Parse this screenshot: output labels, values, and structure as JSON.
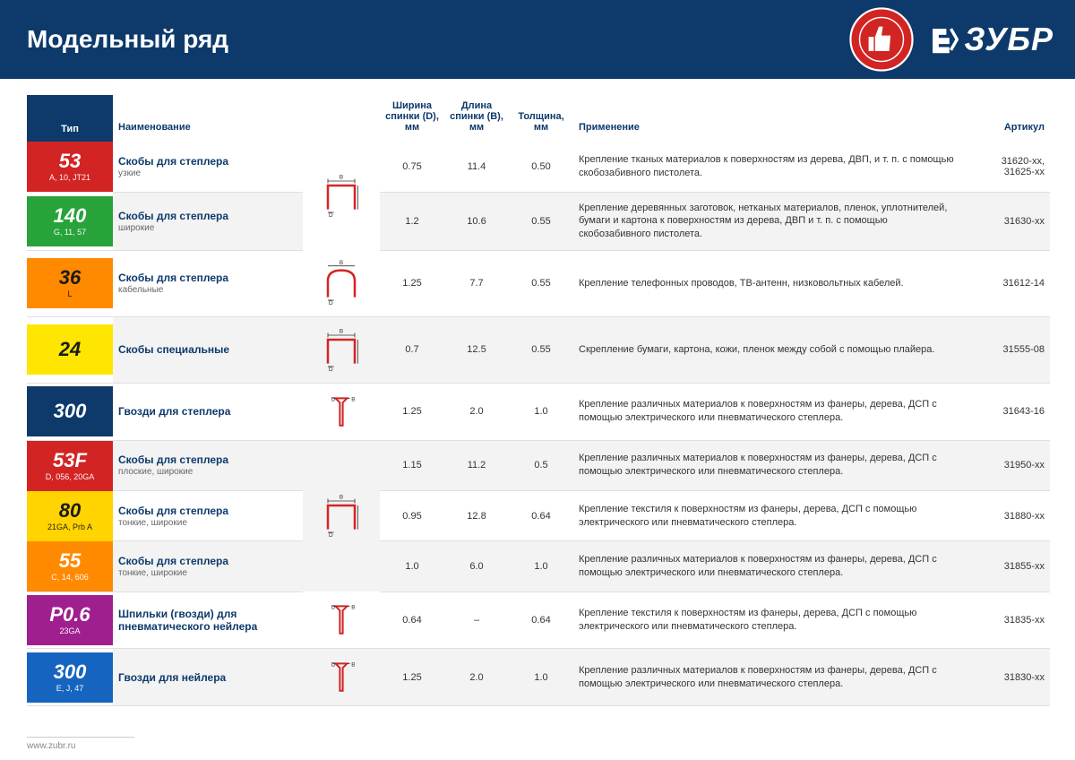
{
  "page": {
    "title": "Модельный ряд",
    "brand": "ЗУБР",
    "footer": "www.zubr.ru",
    "colors": {
      "header_bg": "#0d3a6b",
      "red": "#d32424",
      "green": "#27a33a",
      "yellow": "#ffd400",
      "yellow_dark": "#ffe600",
      "blue": "#0d3a6b",
      "orange": "#ff8a00",
      "purple": "#a01f8f",
      "blue2": "#1565c0",
      "row_alt": "#f3f3f3"
    }
  },
  "table": {
    "type": "table",
    "headers": {
      "tip": "Тип",
      "name": "Наименование",
      "width_d": "Ширина\nспинки (D), мм",
      "length_b": "Длина\nспинки (B), мм",
      "thickness": "Толщина,\nмм",
      "app": "Применение",
      "article": "Артикул"
    },
    "groups": [
      {
        "diagram": "staple",
        "rows": [
          {
            "code": "53",
            "sub": "A, 10, JT21",
            "bg": "#d32424",
            "name": "Скобы для степлера",
            "name_sub": "узкие",
            "d": "0.75",
            "b": "11.4",
            "t": "0.50",
            "app": "Крепление тканых материалов к поверхностям из дерева, ДВП, и т. п. с помощью скобозабивного пистолета.",
            "art": "31620-xx,\n31625-xx"
          },
          {
            "code": "140",
            "sub": "G, 11, 57",
            "bg": "#27a33a",
            "name": "Скобы для степлера",
            "name_sub": "широкие",
            "d": "1.2",
            "b": "10.6",
            "t": "0.55",
            "app": "Крепление деревянных заготовок, нетканых материалов, пленок, уплотнителей, бумаги и картона к поверхностям из дерева, ДВП и т. п. с помощью скобозабивного пистолета.",
            "art": "31630-xx",
            "alt": true
          }
        ]
      },
      {
        "diagram": "staple_round",
        "rows": [
          {
            "code": "36",
            "sub": "L",
            "bg": "#ff8a00",
            "dark_text": true,
            "name": "Скобы для степлера",
            "name_sub": "кабельные",
            "d": "1.25",
            "b": "7.7",
            "t": "0.55",
            "app": "Крепление телефонных проводов, ТВ-антенн, низковольтных кабелей.",
            "art": "31612-14"
          }
        ]
      },
      {
        "diagram": "staple",
        "rows": [
          {
            "code": "24",
            "sub": "",
            "bg": "#ffe600",
            "dark_text": true,
            "name": "Скобы специальные",
            "name_sub": "",
            "d": "0.7",
            "b": "12.5",
            "t": "0.55",
            "app": "Скрепление бумаги, картона, кожи, пленок между собой с помощью плайера.",
            "art": "31555-08",
            "alt": true
          }
        ]
      },
      {
        "diagram": "nail",
        "rows": [
          {
            "code": "300",
            "sub": "",
            "bg": "#0d3a6b",
            "name": "Гвозди для степлера",
            "name_sub": "",
            "d": "1.25",
            "b": "2.0",
            "t": "1.0",
            "app": "Крепление различных материалов к поверхностям из фанеры, дерева, ДСП с помощью электрического или пневматического степлера.",
            "art": "31643-16"
          }
        ]
      },
      {
        "diagram": "staple",
        "rows": [
          {
            "code": "53F",
            "sub": "D, 056, 20GA",
            "bg": "#d32424",
            "name": "Скобы для степлера",
            "name_sub": "плоские, широкие",
            "d": "1.15",
            "b": "11.2",
            "t": "0.5",
            "app": "Крепление различных материалов к поверхностям из фанеры, дерева, ДСП с помощью электрического или пневматического степлера.",
            "art": "31950-xx",
            "alt": true
          },
          {
            "code": "80",
            "sub": "21GA, Prb A",
            "bg": "#ffd400",
            "dark_text": true,
            "name": "Скобы для степлера",
            "name_sub": "тонкие, широкие",
            "d": "0.95",
            "b": "12.8",
            "t": "0.64",
            "app": "Крепление текстиля к поверхностям из фанеры, дерева, ДСП с помощью электрического или пневматического степлера.",
            "art": "31880-xx"
          },
          {
            "code": "55",
            "sub": "C, 14, 606",
            "bg": "#ff8a00",
            "name": "Скобы для степлера",
            "name_sub": "тонкие, широкие",
            "d": "1.0",
            "b": "6.0",
            "t": "1.0",
            "app": "Крепление различных материалов к поверхностям из фанеры, дерева, ДСП с помощью электрического или пневматического степлера.",
            "art": "31855-xx",
            "alt": true
          }
        ]
      },
      {
        "diagram": "nail",
        "rows": [
          {
            "code": "P0.6",
            "sub": "23GA",
            "bg": "#a01f8f",
            "name": "Шпильки (гвозди) для пневматического нейлера",
            "name_sub": "",
            "d": "0.64",
            "b": "–",
            "t": "0.64",
            "app": "Крепление текстиля к поверхностям из фанеры, дерева, ДСП с помощью электрического или пневматического степлера.",
            "art": "31835-xx"
          }
        ]
      },
      {
        "diagram": "nail",
        "rows": [
          {
            "code": "300",
            "sub": "E, J, 47",
            "bg": "#1565c0",
            "name": "Гвозди для нейлера",
            "name_sub": "",
            "d": "1.25",
            "b": "2.0",
            "t": "1.0",
            "app": "Крепление различных материалов к поверхностям из фанеры, дерева, ДСП с помощью электрического или пневматического степлера.",
            "art": "31830-xx",
            "alt": true
          }
        ]
      }
    ]
  }
}
